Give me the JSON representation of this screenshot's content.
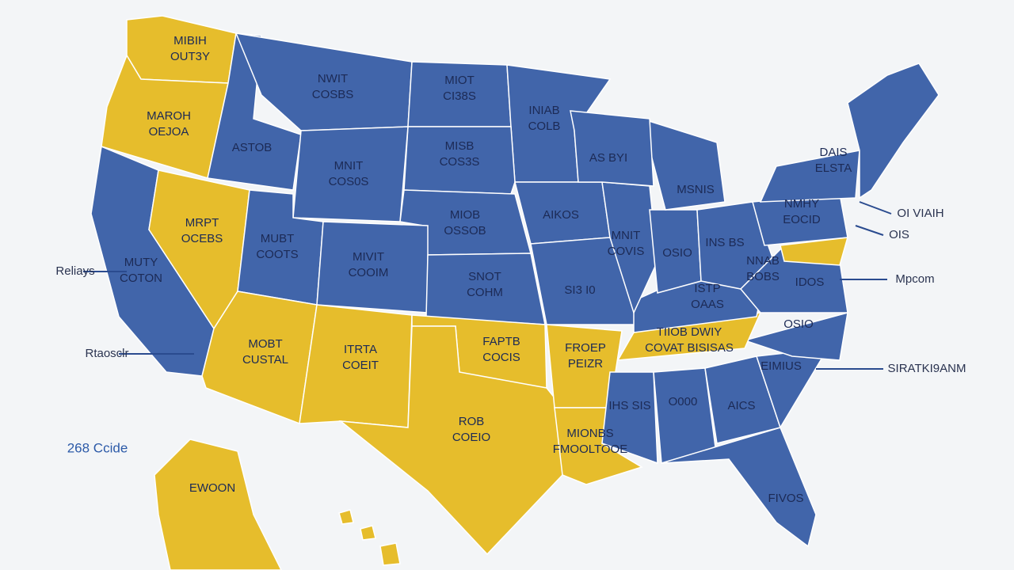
{
  "title": "268 Ccide",
  "labels": [
    [
      "MIBIH",
      "OUT3Y"
    ],
    [
      "MAROH",
      "OEJOA"
    ],
    [
      "ASTOB"
    ],
    [
      "NWIT",
      "COSBS"
    ],
    [
      "MIOT",
      "CI38S"
    ],
    [
      "INIAB",
      "COLB"
    ],
    [
      "MISB",
      "COS3S"
    ],
    [
      "MNIT",
      "COS0S"
    ],
    [
      "AS BYI"
    ],
    [
      "MSNIS"
    ],
    [
      "DAIS",
      "ELSTA"
    ],
    [
      "MIOB",
      "OSSOB"
    ],
    [
      "AIKOS"
    ],
    [
      "MRPT",
      "OCEBS"
    ],
    [
      "MUBT",
      "COOTS"
    ],
    [
      "MIVIT",
      "COOIM"
    ],
    [
      "MUTY",
      "COTON"
    ],
    [
      "SNOT",
      "COHM"
    ],
    [
      "SI3 I0"
    ],
    [
      "MNIT",
      "COVIS"
    ],
    [
      "OSIO"
    ],
    [
      "INS BS"
    ],
    [
      "NMHY",
      "EOCID"
    ],
    [
      "NNAB",
      "BOBS"
    ],
    [
      "ISTP",
      "OAAS"
    ],
    [
      "IDOS"
    ],
    [
      "OSIO"
    ],
    [
      "TIIOB DWIY",
      "COVAT BISISAS"
    ],
    [
      "FROEP",
      "PEIZR"
    ],
    [
      "FAPTB",
      "COCIS"
    ],
    [
      "MOBT",
      "CUSTAL"
    ],
    [
      "ITRTA",
      "COEIT"
    ],
    [
      "ROB",
      "COEIO"
    ],
    [
      "IHS SIS"
    ],
    [
      "O000"
    ],
    [
      "AICS"
    ],
    [
      "EIMIUS"
    ],
    [
      "MIONBS",
      "FMOOLTOOE"
    ],
    [
      "FIVOS"
    ],
    [
      "EWOON"
    ]
  ],
  "callouts": [
    "Reliays",
    "Rtaosclr",
    "OI VIAIH",
    "OIS",
    "Mpcom",
    "SIRATKI9ANM"
  ]
}
